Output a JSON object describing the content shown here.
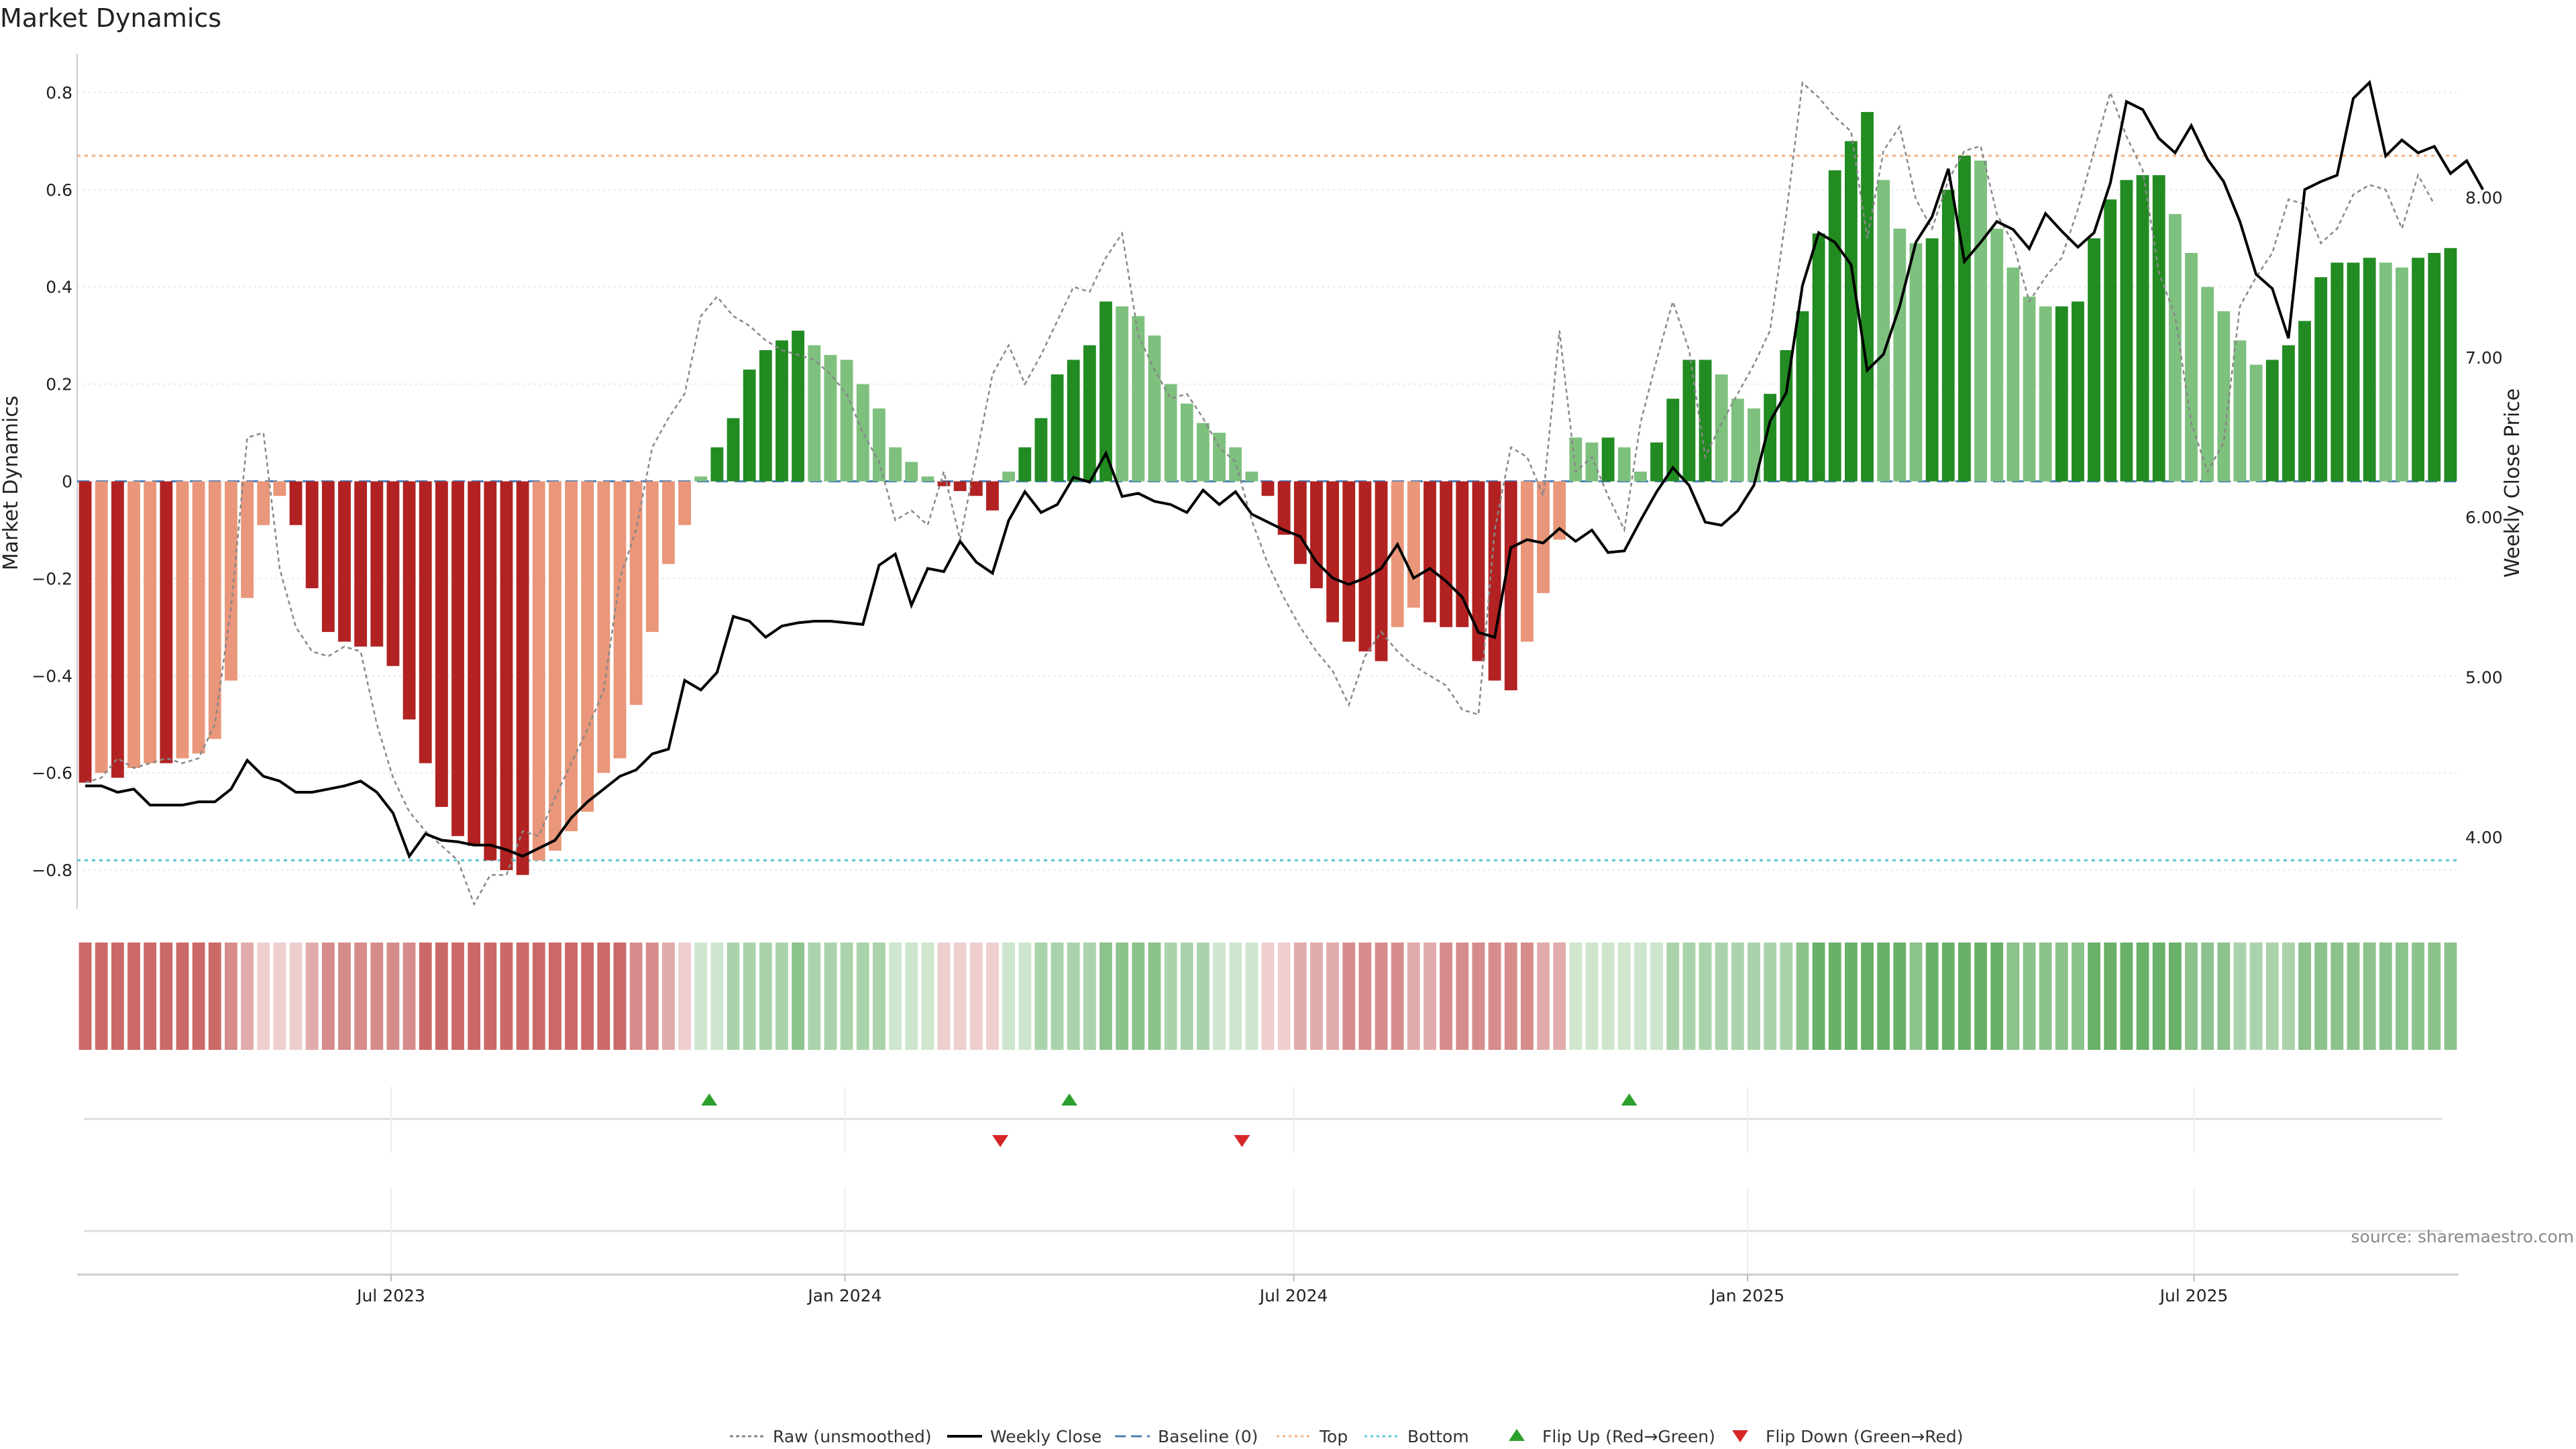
{
  "title": "Market Dynamics",
  "source": "source: sharemaestro.com",
  "colors": {
    "strong_red": "#b22222",
    "light_red": "#e9967a",
    "strong_green": "#228b22",
    "light_green": "#7ec07e",
    "raw": "#888888",
    "close": "#000000",
    "baseline": "#4a7fb5",
    "top": "#f4b183",
    "bottom": "#5bc8d8",
    "flip_up": "#2ca02c",
    "flip_down": "#d62728"
  },
  "chart_data": {
    "type": "bar",
    "x_type": "weekly dates",
    "x_first": "2023-02-27",
    "x_last": "2025-10-13",
    "x_ticks": [
      "Jul 2023",
      "Jan 2024",
      "Jul 2024",
      "Jan 2025",
      "Jul 2025"
    ],
    "x_tick_dates": [
      "2023-07-01",
      "2024-01-01",
      "2024-07-01",
      "2025-01-01",
      "2025-07-01"
    ],
    "y_label": "Market Dynamics",
    "y_ticks": [
      "0.8",
      "0.6",
      "0.4",
      "0.2",
      "0",
      "−0.2",
      "−0.4",
      "−0.6",
      "−0.8"
    ],
    "ylim": [
      -0.88,
      0.88
    ],
    "y2_label": "Weekly Close Price",
    "y2_ticks": [
      "8.00",
      "7.00",
      "6.00",
      "5.00",
      "4.00"
    ],
    "y2lim": [
      3.55,
      8.9
    ],
    "top_line": 0.67,
    "bottom_line": -0.78,
    "baseline": 0,
    "dynamics": [
      -0.62,
      -0.6,
      -0.61,
      -0.59,
      -0.58,
      -0.58,
      -0.57,
      -0.56,
      -0.53,
      -0.41,
      -0.24,
      -0.09,
      -0.03,
      -0.09,
      -0.22,
      -0.31,
      -0.33,
      -0.34,
      -0.34,
      -0.38,
      -0.49,
      -0.58,
      -0.67,
      -0.73,
      -0.75,
      -0.78,
      -0.8,
      -0.81,
      -0.78,
      -0.76,
      -0.72,
      -0.68,
      -0.6,
      -0.57,
      -0.46,
      -0.31,
      -0.17,
      -0.09,
      0.01,
      0.07,
      0.13,
      0.23,
      0.27,
      0.29,
      0.31,
      0.28,
      0.26,
      0.25,
      0.2,
      0.15,
      0.07,
      0.04,
      0.01,
      -0.01,
      -0.02,
      -0.03,
      -0.06,
      0.02,
      0.07,
      0.13,
      0.22,
      0.25,
      0.28,
      0.37,
      0.36,
      0.34,
      0.3,
      0.2,
      0.16,
      0.12,
      0.1,
      0.07,
      0.02,
      -0.03,
      -0.11,
      -0.17,
      -0.22,
      -0.29,
      -0.33,
      -0.35,
      -0.37,
      -0.3,
      -0.26,
      -0.29,
      -0.3,
      -0.3,
      -0.37,
      -0.41,
      -0.43,
      -0.33,
      -0.23,
      -0.12,
      0.09,
      0.08,
      0.09,
      0.07,
      0.02,
      0.08,
      0.17,
      0.25,
      0.25,
      0.22,
      0.17,
      0.15,
      0.18,
      0.27,
      0.35,
      0.51,
      0.64,
      0.7,
      0.76,
      0.62,
      0.52,
      0.49,
      0.5,
      0.6,
      0.67,
      0.66,
      0.52,
      0.44,
      0.38,
      0.36,
      0.36,
      0.37,
      0.5,
      0.58,
      0.62,
      0.63,
      0.63,
      0.55,
      0.47,
      0.4,
      0.35,
      0.29,
      0.24,
      0.25,
      0.28,
      0.33,
      0.42,
      0.45,
      0.45,
      0.46,
      0.45,
      0.44,
      0.46,
      0.47,
      0.48
    ],
    "raw": [
      -0.62,
      -0.61,
      -0.57,
      -0.59,
      -0.58,
      -0.57,
      -0.58,
      -0.57,
      -0.5,
      -0.26,
      0.09,
      0.1,
      -0.18,
      -0.3,
      -0.35,
      -0.36,
      -0.34,
      -0.35,
      -0.5,
      -0.61,
      -0.68,
      -0.72,
      -0.75,
      -0.78,
      -0.87,
      -0.81,
      -0.81,
      -0.72,
      -0.73,
      -0.65,
      -0.58,
      -0.51,
      -0.43,
      -0.2,
      -0.1,
      0.07,
      0.13,
      0.18,
      0.34,
      0.38,
      0.34,
      0.32,
      0.29,
      0.27,
      0.26,
      0.25,
      0.22,
      0.18,
      0.1,
      0.04,
      -0.08,
      -0.06,
      -0.09,
      0.02,
      -0.12,
      0.05,
      0.22,
      0.28,
      0.2,
      0.26,
      0.33,
      0.4,
      0.39,
      0.46,
      0.51,
      0.3,
      0.23,
      0.17,
      0.18,
      0.13,
      0.07,
      0.04,
      -0.08,
      -0.17,
      -0.24,
      -0.3,
      -0.35,
      -0.39,
      -0.46,
      -0.36,
      -0.31,
      -0.35,
      -0.38,
      -0.4,
      -0.42,
      -0.47,
      -0.48,
      -0.1,
      0.07,
      0.05,
      -0.03,
      0.31,
      0.02,
      0.05,
      -0.03,
      -0.1,
      0.12,
      0.25,
      0.37,
      0.27,
      0.05,
      0.12,
      0.18,
      0.24,
      0.31,
      0.55,
      0.82,
      0.79,
      0.75,
      0.72,
      0.5,
      0.68,
      0.73,
      0.58,
      0.52,
      0.62,
      0.68,
      0.69,
      0.55,
      0.49,
      0.37,
      0.42,
      0.46,
      0.56,
      0.68,
      0.8,
      0.71,
      0.64,
      0.43,
      0.34,
      0.12,
      0.02,
      0.08,
      0.36,
      0.42,
      0.47,
      0.58,
      0.57,
      0.49,
      0.52,
      0.59,
      0.61,
      0.6,
      0.52,
      0.63,
      0.57
    ],
    "close": [
      4.32,
      4.32,
      4.28,
      4.3,
      4.2,
      4.2,
      4.2,
      4.22,
      4.22,
      4.3,
      4.48,
      4.38,
      4.35,
      4.28,
      4.28,
      4.3,
      4.32,
      4.35,
      4.28,
      4.15,
      3.88,
      4.02,
      3.98,
      3.97,
      3.95,
      3.95,
      3.92,
      3.88,
      3.93,
      3.98,
      4.12,
      4.22,
      4.3,
      4.38,
      4.42,
      4.52,
      4.55,
      4.98,
      4.92,
      5.03,
      5.38,
      5.35,
      5.25,
      5.32,
      5.34,
      5.35,
      5.35,
      5.34,
      5.33,
      5.7,
      5.77,
      5.45,
      5.68,
      5.66,
      5.85,
      5.72,
      5.65,
      5.98,
      6.16,
      6.03,
      6.08,
      6.25,
      6.22,
      6.4,
      6.13,
      6.15,
      6.1,
      6.08,
      6.03,
      6.17,
      6.08,
      6.16,
      6.02,
      5.97,
      5.92,
      5.88,
      5.72,
      5.62,
      5.58,
      5.62,
      5.68,
      5.83,
      5.62,
      5.68,
      5.6,
      5.5,
      5.28,
      5.25,
      5.81,
      5.86,
      5.84,
      5.93,
      5.85,
      5.92,
      5.78,
      5.79,
      5.98,
      6.16,
      6.31,
      6.2,
      5.97,
      5.95,
      6.04,
      6.2,
      6.6,
      6.78,
      7.45,
      7.78,
      7.72,
      7.58,
      6.92,
      7.02,
      7.32,
      7.72,
      7.88,
      8.18,
      7.6,
      7.72,
      7.85,
      7.8,
      7.68,
      7.9,
      7.79,
      7.69,
      7.78,
      8.09,
      8.6,
      8.55,
      8.37,
      8.28,
      8.45,
      8.24,
      8.1,
      7.85,
      7.52,
      7.43,
      7.12,
      8.05,
      8.1,
      8.14,
      8.62,
      8.72,
      8.26,
      8.36,
      8.28,
      8.32,
      8.15,
      8.23,
      8.05
    ],
    "flip_up_dates": [
      "2023-11-07",
      "2024-04-01",
      "2024-11-14"
    ],
    "flip_down_dates": [
      "2024-03-04",
      "2024-06-10"
    ],
    "heat_shades": [
      3,
      3,
      3,
      3,
      3,
      3,
      3,
      3,
      3,
      2,
      1,
      1,
      1,
      1,
      2,
      2,
      2,
      2,
      2,
      2,
      2,
      3,
      3,
      3,
      3,
      3,
      3,
      3,
      3,
      3,
      3,
      3,
      3,
      2,
      2,
      2,
      1,
      1,
      1,
      1,
      1,
      2,
      2,
      2,
      2,
      2,
      2,
      2,
      2,
      1,
      1,
      1,
      1,
      1,
      1,
      1,
      1,
      1,
      1,
      2,
      2,
      2,
      2,
      2,
      2,
      2,
      2,
      2,
      2,
      2,
      2,
      2,
      1,
      1,
      1,
      1,
      1,
      2,
      2,
      2,
      2,
      2,
      2,
      2,
      2,
      2,
      2,
      2,
      2,
      2,
      2,
      1,
      1,
      1,
      1,
      1,
      1,
      1,
      1,
      1,
      1,
      1,
      1,
      1,
      1,
      1,
      1,
      2,
      2,
      2,
      2,
      3,
      3,
      3,
      3,
      3,
      3,
      3,
      3,
      3,
      3,
      3,
      3,
      3,
      3,
      3,
      3,
      3,
      3,
      3,
      3,
      3,
      3,
      3,
      3,
      3,
      3,
      3,
      3,
      3,
      3,
      3,
      3,
      3,
      3,
      3,
      3,
      3,
      3,
      3
    ],
    "legend": [
      "Raw (unsmoothed)",
      "Weekly Close",
      "Baseline (0)",
      "Top",
      "Bottom",
      "Flip Up (Red→Green)",
      "Flip Down (Green→Red)"
    ]
  }
}
